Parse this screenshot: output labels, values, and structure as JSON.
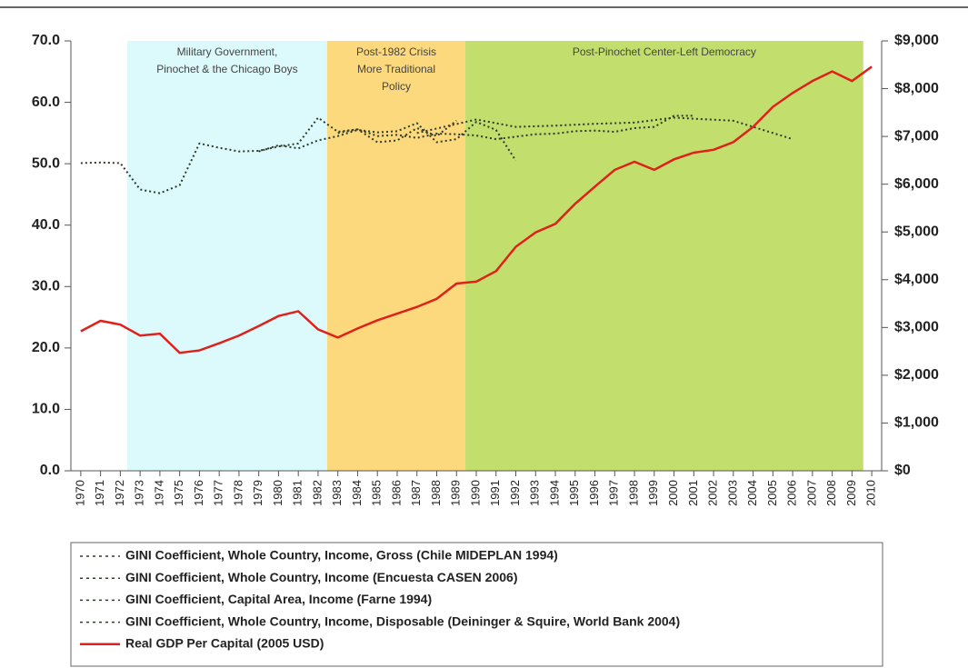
{
  "chart_data": {
    "type": "line",
    "xlim": [
      1969.5,
      2010.5
    ],
    "xticks": [
      1970,
      1971,
      1972,
      1973,
      1974,
      1975,
      1976,
      1977,
      1978,
      1979,
      1980,
      1981,
      1982,
      1983,
      1984,
      1985,
      1986,
      1987,
      1988,
      1989,
      1990,
      1991,
      1992,
      1993,
      1994,
      1995,
      1996,
      1997,
      1998,
      1999,
      2000,
      2001,
      2002,
      2003,
      2004,
      2005,
      2006,
      2007,
      2008,
      2009,
      2010
    ],
    "ylim": [
      0,
      70
    ],
    "yticks": [
      {
        "value": 0,
        "label": "0.0"
      },
      {
        "value": 10,
        "label": "10.0"
      },
      {
        "value": 20,
        "label": "20.0"
      },
      {
        "value": 30,
        "label": "30.0"
      },
      {
        "value": 40,
        "label": "40.0"
      },
      {
        "value": 50,
        "label": "50.0"
      },
      {
        "value": 60,
        "label": "60.0"
      },
      {
        "value": 70,
        "label": "70.0"
      }
    ],
    "y2lim": [
      0,
      9000
    ],
    "y2ticks": [
      {
        "value": 0,
        "label": "$0"
      },
      {
        "value": 1000,
        "label": "$1,000"
      },
      {
        "value": 2000,
        "label": "$2,000"
      },
      {
        "value": 3000,
        "label": "$3,000"
      },
      {
        "value": 4000,
        "label": "$4,000"
      },
      {
        "value": 5000,
        "label": "$5,000"
      },
      {
        "value": 6000,
        "label": "$6,000"
      },
      {
        "value": 7000,
        "label": "$7,000"
      },
      {
        "value": 8000,
        "label": "$8,000"
      },
      {
        "value": 9000,
        "label": "$9,000"
      }
    ],
    "regions": [
      {
        "label": [
          "Military Government,",
          "Pinochet & the Chicago Boys"
        ],
        "start": 1972.35,
        "end": 1982.46,
        "color": "#dcf9fc"
      },
      {
        "label": [
          "Post-1982 Crisis",
          "More Traditional",
          "Policy"
        ],
        "start": 1982.46,
        "end": 1989.45,
        "color": "#fcd97c"
      },
      {
        "label": [
          "Post-Pinochet Center-Left Democracy"
        ],
        "start": 1989.45,
        "end": 2009.57,
        "color": "#c2df6e"
      }
    ],
    "series": [
      {
        "name": "GINI Coefficient, Whole Country, Income, Gross (Chile MIDEPLAN 1994)",
        "color": "#2e3b2a",
        "line_style": "dotted",
        "x": [
          1970,
          1971,
          1972,
          1973,
          1974,
          1975,
          1976,
          1977,
          1978,
          1979,
          1980,
          1981,
          1982,
          1983,
          1984,
          1985,
          1986,
          1987,
          1988,
          1989
        ],
        "values": [
          50.1,
          50.2,
          50.1,
          45.8,
          45.2,
          46.5,
          53.3,
          52.6,
          52.0,
          52.1,
          52.8,
          53.3,
          57.5,
          55.2,
          55.6,
          53.5,
          53.8,
          55.8,
          54.5,
          57.0
        ]
      },
      {
        "name": "GINI Coefficient, Whole Country, Income (Encuesta CASEN 2006)",
        "color": "#2e3b2a",
        "line_style": "dotted",
        "x": [
          1987,
          1990,
          1992,
          1994,
          1996,
          1998,
          2000,
          2003,
          2006
        ],
        "values": [
          55.0,
          57.2,
          56.0,
          56.2,
          56.5,
          56.7,
          57.5,
          57.0,
          54.0
        ]
      },
      {
        "name": "GINI Coefficient, Capital Area, Income (Farne 1994)",
        "color": "#2e3b2a",
        "line_style": "dotted",
        "x": [
          1979,
          1980,
          1981,
          1982,
          1983,
          1984,
          1985,
          1986,
          1987,
          1988,
          1989,
          1990,
          1991,
          1992
        ],
        "values": [
          52.0,
          53.0,
          52.5,
          53.8,
          54.5,
          55.5,
          55.1,
          55.3,
          56.6,
          53.5,
          54.0,
          56.8,
          55.5,
          50.5
        ]
      },
      {
        "name": "GINI Coefficient, Whole Country, Income, Disposable (Deininger & Squire, World Bank 2004)",
        "color": "#2e3b2a",
        "line_style": "dotted",
        "x": [
          1983,
          1984,
          1985,
          1986,
          1987,
          1988,
          1989,
          1990,
          1991,
          1992,
          1993,
          1994,
          1995,
          1996,
          1997,
          1998,
          1999,
          2000,
          2001
        ],
        "values": [
          55.0,
          55.6,
          54.5,
          54.7,
          54.2,
          54.9,
          54.8,
          54.6,
          54.0,
          54.4,
          54.8,
          54.9,
          55.3,
          55.4,
          55.2,
          55.8,
          56.0,
          57.8,
          57.8
        ]
      },
      {
        "name": "Real GDP Per Capital (2005 USD)",
        "color": "#e0201a",
        "line_style": "solid",
        "axis": "y2",
        "x": [
          1970,
          1971,
          1972,
          1973,
          1974,
          1975,
          1976,
          1977,
          1978,
          1979,
          1980,
          1981,
          1982,
          1983,
          1984,
          1985,
          1986,
          1987,
          1988,
          1989,
          1990,
          1991,
          1992,
          1993,
          1994,
          1995,
          1996,
          1997,
          1998,
          1999,
          2000,
          2001,
          2002,
          2003,
          2004,
          2005,
          2006,
          2007,
          2008,
          2009,
          2010
        ],
        "values": [
          2920,
          3140,
          3060,
          2830,
          2870,
          2470,
          2520,
          2670,
          2830,
          3030,
          3240,
          3340,
          2960,
          2790,
          2980,
          3150,
          3290,
          3430,
          3600,
          3920,
          3960,
          4180,
          4690,
          4990,
          5170,
          5590,
          5950,
          6300,
          6470,
          6300,
          6520,
          6660,
          6720,
          6880,
          7200,
          7620,
          7910,
          8160,
          8360,
          8160,
          8460
        ]
      }
    ]
  }
}
